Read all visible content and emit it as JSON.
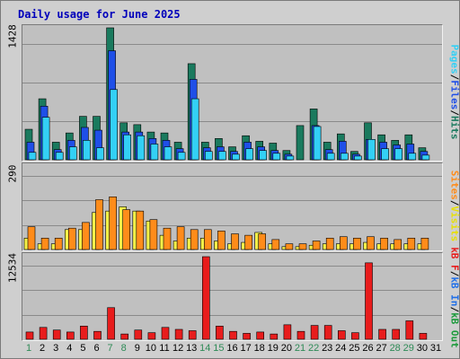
{
  "title": "Daily usage for June 2025",
  "colors": {
    "hits": "#1a7a5e",
    "files": "#1f4fe8",
    "pages": "#33d0f5",
    "visits": "#f4f048",
    "sites": "#ff8c1a",
    "kb": "#e81c1c",
    "weekend_label": "#2e8b57"
  },
  "legends": {
    "top": [
      {
        "text": "Pages",
        "color": "#33d0f5"
      },
      {
        "text": "/",
        "color": "#000000"
      },
      {
        "text": "Files",
        "color": "#1f4fe8"
      },
      {
        "text": "/",
        "color": "#000000"
      },
      {
        "text": "Hits",
        "color": "#1a7a5e"
      }
    ],
    "middle": [
      {
        "text": "Sites",
        "color": "#ff8c1a"
      },
      {
        "text": "/",
        "color": "#000000"
      },
      {
        "text": "Visits",
        "color": "#e8e000"
      }
    ],
    "bottom": [
      {
        "text": "kB F",
        "color": "#e81c1c"
      },
      {
        "text": "/",
        "color": "#000000"
      },
      {
        "text": "kB In",
        "color": "#1f6fe8"
      },
      {
        "text": "/",
        "color": "#000000"
      },
      {
        "text": "kB Out",
        "color": "#1a9a3a"
      }
    ]
  },
  "chart_data": [
    {
      "type": "bar",
      "ylabel": "1428",
      "ylim": [
        0,
        1428
      ],
      "categories": [
        "1",
        "2",
        "3",
        "4",
        "5",
        "6",
        "7",
        "8",
        "9",
        "10",
        "11",
        "12",
        "13",
        "14",
        "15",
        "16",
        "17",
        "18",
        "19",
        "20",
        "21",
        "22",
        "23",
        "24",
        "25",
        "26",
        "27",
        "28",
        "29",
        "30",
        "31"
      ],
      "series": [
        {
          "name": "Hits",
          "values": [
            330,
            660,
            190,
            290,
            470,
            470,
            1428,
            400,
            380,
            300,
            290,
            190,
            1040,
            190,
            230,
            140,
            260,
            200,
            180,
            100,
            370,
            550,
            190,
            280,
            90,
            400,
            270,
            210,
            270,
            130,
            0
          ]
        },
        {
          "name": "Files",
          "values": [
            190,
            580,
            110,
            210,
            350,
            320,
            1180,
            300,
            300,
            230,
            210,
            120,
            870,
            130,
            140,
            90,
            190,
            140,
            100,
            60,
            0,
            370,
            110,
            200,
            60,
            220,
            190,
            160,
            170,
            90,
            0
          ]
        },
        {
          "name": "Pages",
          "values": [
            80,
            460,
            80,
            140,
            210,
            130,
            760,
            270,
            260,
            170,
            140,
            80,
            660,
            90,
            90,
            60,
            120,
            100,
            70,
            40,
            0,
            360,
            70,
            70,
            40,
            220,
            120,
            120,
            70,
            50,
            0
          ]
        }
      ]
    },
    {
      "type": "bar",
      "ylabel": "290",
      "ylim": [
        0,
        290
      ],
      "categories": [
        "1",
        "2",
        "3",
        "4",
        "5",
        "6",
        "7",
        "8",
        "9",
        "10",
        "11",
        "12",
        "13",
        "14",
        "15",
        "16",
        "17",
        "18",
        "19",
        "20",
        "21",
        "22",
        "23",
        "24",
        "25",
        "26",
        "27",
        "28",
        "29",
        "30",
        "31"
      ],
      "series": [
        {
          "name": "Visits",
          "values": [
            40,
            20,
            20,
            70,
            70,
            130,
            135,
            150,
            135,
            100,
            50,
            30,
            40,
            40,
            30,
            20,
            25,
            60,
            20,
            10,
            10,
            15,
            20,
            20,
            20,
            25,
            20,
            20,
            20,
            20,
            0
          ]
        },
        {
          "name": "Sites",
          "values": [
            80,
            40,
            40,
            75,
            95,
            175,
            185,
            140,
            135,
            105,
            75,
            80,
            70,
            70,
            65,
            55,
            50,
            55,
            35,
            20,
            20,
            30,
            40,
            45,
            40,
            45,
            40,
            35,
            40,
            40,
            0
          ]
        }
      ]
    },
    {
      "type": "bar",
      "ylabel": "12534",
      "ylim": [
        0,
        12534
      ],
      "categories": [
        "1",
        "2",
        "3",
        "4",
        "5",
        "6",
        "7",
        "8",
        "9",
        "10",
        "11",
        "12",
        "13",
        "14",
        "15",
        "16",
        "17",
        "18",
        "19",
        "20",
        "21",
        "22",
        "23",
        "24",
        "25",
        "26",
        "27",
        "28",
        "29",
        "30",
        "31"
      ],
      "series": [
        {
          "name": "kB F",
          "values": [
            1100,
            1800,
            1400,
            1100,
            2000,
            1200,
            4800,
            800,
            1400,
            1000,
            1800,
            1500,
            1300,
            12534,
            2000,
            1200,
            900,
            1100,
            800,
            2200,
            1200,
            2100,
            2100,
            1300,
            1000,
            11600,
            1500,
            1500,
            2800,
            900,
            0
          ]
        }
      ]
    }
  ]
}
